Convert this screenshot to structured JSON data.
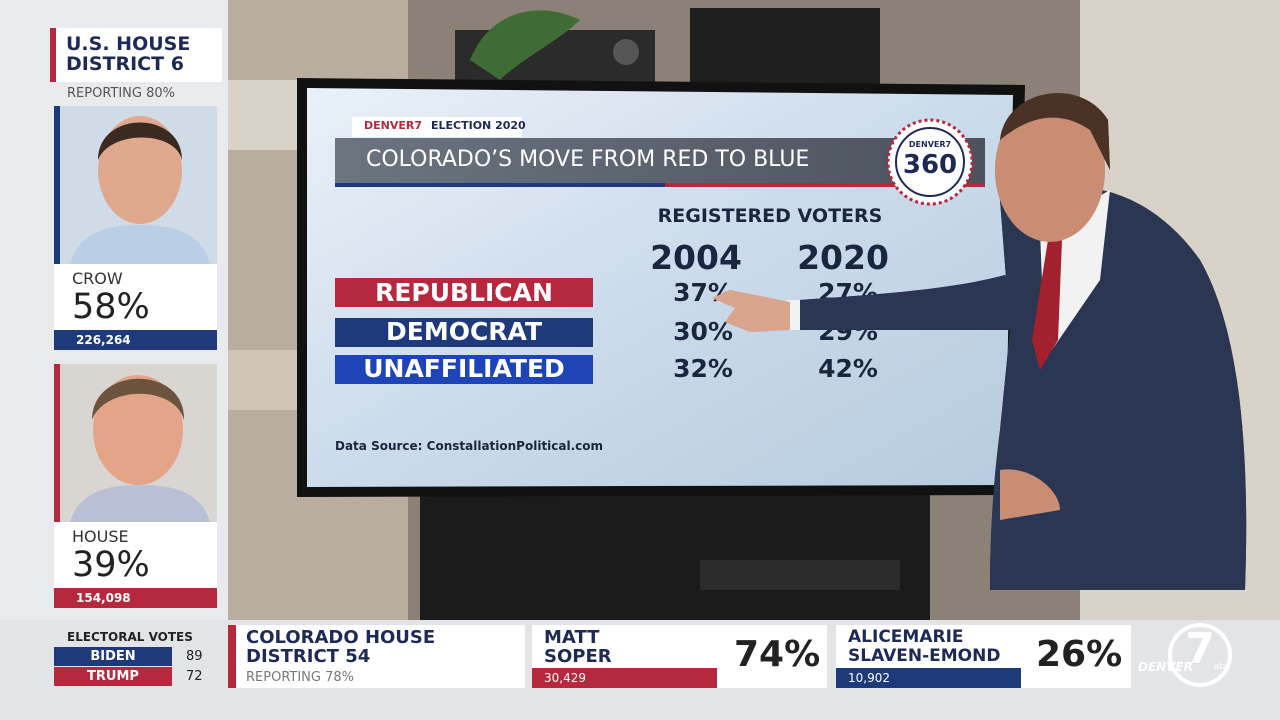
{
  "sidebar": {
    "race_title": "U.S. HOUSE DISTRICT 6",
    "reporting": "REPORTING 80%",
    "candidates": [
      {
        "name": "CROW",
        "percent": "58%",
        "votes": "226,264"
      },
      {
        "name": "HOUSE",
        "percent": "39%",
        "votes": "154,098"
      }
    ]
  },
  "electoral_votes": {
    "title": "ELECTORAL VOTES",
    "rows": [
      {
        "name": "BIDEN",
        "votes": "89"
      },
      {
        "name": "TRUMP",
        "votes": "72"
      }
    ]
  },
  "ticker": {
    "race_title": "COLORADO HOUSE DISTRICT 54",
    "reporting": "REPORTING 78%",
    "candidates": [
      {
        "name": "MATT SOPER",
        "percent": "74%",
        "votes": "30,429"
      },
      {
        "name": "ALICEMARIE SLAVEN-EMOND",
        "percent": "26%",
        "votes": "10,902"
      }
    ]
  },
  "logo": {
    "number": "7",
    "name": "DENVER",
    "network": "abc"
  },
  "screen": {
    "brand": "DENVER7",
    "tag": "ELECTION 2020",
    "title": "COLORADO’S MOVE FROM RED TO BLUE",
    "badge_brand": "DENVER7",
    "badge_number": "360",
    "table": {
      "heading": "REGISTERED VOTERS",
      "columns": [
        "2004",
        "2020"
      ],
      "rows": [
        {
          "label": "REPUBLICAN",
          "values": [
            "37%",
            "27%"
          ]
        },
        {
          "label": "DEMOCRAT",
          "values": [
            "30%",
            "29%"
          ]
        },
        {
          "label": "UNAFFILIATED",
          "values": [
            "32%",
            "42%"
          ]
        }
      ]
    },
    "source": "Data Source: ConstallationPolitical.com"
  }
}
